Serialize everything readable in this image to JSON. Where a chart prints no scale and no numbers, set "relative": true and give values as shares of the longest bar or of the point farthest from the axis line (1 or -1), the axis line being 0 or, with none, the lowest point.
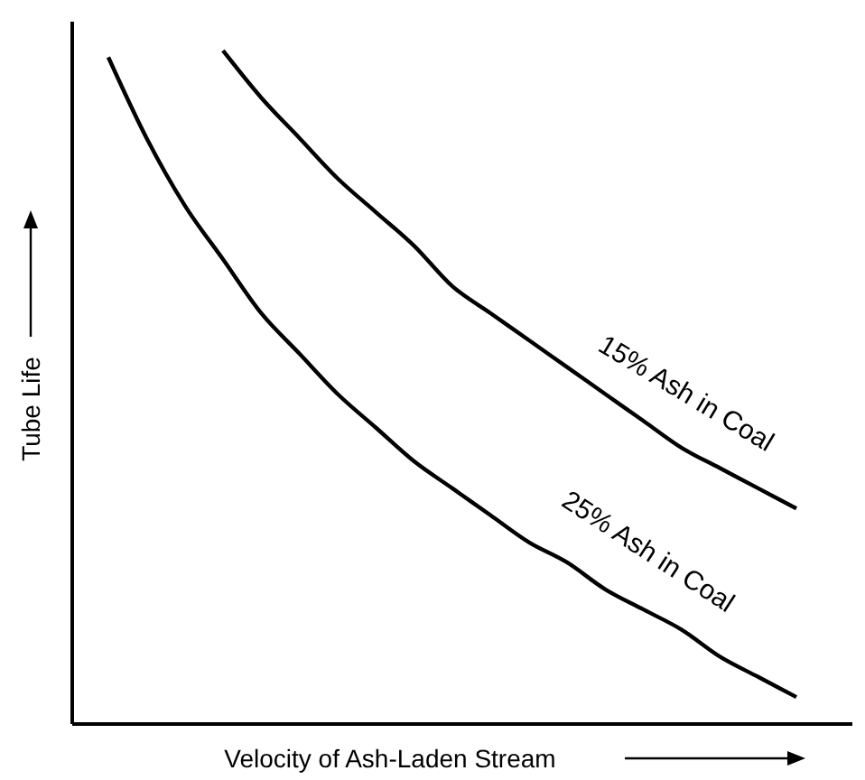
{
  "chart_data": {
    "type": "line",
    "relative": true,
    "xlabel": "Velocity of Ash-Laden Stream",
    "ylabel": "Tube Life",
    "categories": [
      null,
      null,
      null,
      null,
      null,
      null,
      null,
      null,
      null,
      null,
      null,
      null,
      null,
      null,
      null,
      null,
      null,
      null,
      null
    ],
    "marker": "none",
    "line_style": "solid",
    "legend": false,
    "grid": false,
    "series": [
      {
        "name": "15% Ash in Coal",
        "color": "#000000",
        "values": [
          null,
          null,
          null,
          1.0,
          0.93,
          0.87,
          0.81,
          0.76,
          0.71,
          0.65,
          0.61,
          0.57,
          0.53,
          0.49,
          0.45,
          0.41,
          0.38,
          0.35,
          0.32
        ]
      },
      {
        "name": "25% Ash in Coal",
        "color": "#000000",
        "values": [
          0.99,
          0.87,
          0.77,
          0.69,
          0.61,
          0.55,
          0.49,
          0.44,
          0.39,
          0.35,
          0.31,
          0.27,
          0.24,
          0.2,
          0.17,
          0.14,
          0.1,
          0.07,
          0.04
        ]
      }
    ]
  }
}
